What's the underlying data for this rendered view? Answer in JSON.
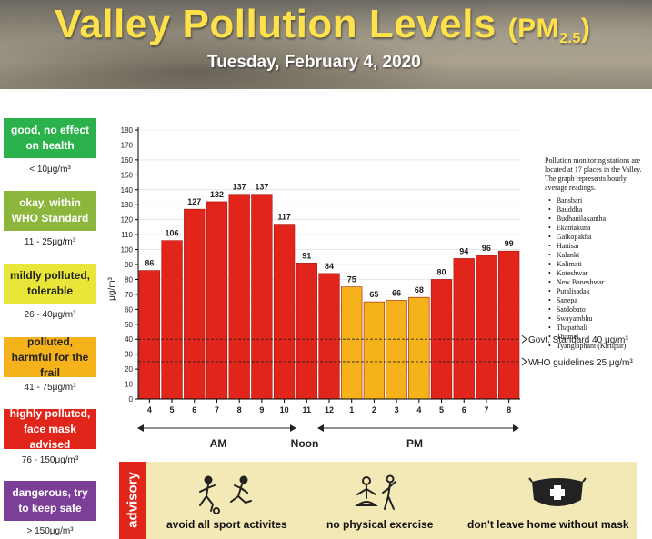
{
  "header": {
    "title": "Valley Pollution Levels",
    "title_pm": "(PM",
    "title_sub": "2.5",
    "title_close": ")",
    "date": "Tuesday, February 4, 2020"
  },
  "legend": [
    {
      "label": "good, no effect on health",
      "range": "< 10μg/m³",
      "color": "#2bb24c"
    },
    {
      "label": "okay, within WHO Standard",
      "range": "11 - 25μg/m³",
      "color": "#8cb63c"
    },
    {
      "label": "mildly polluted, tolerable",
      "range": "26 - 40μg/m³",
      "color": "#e9e63a",
      "text_color": "#222222"
    },
    {
      "label": "polluted, harmful for the frail",
      "range": "41 - 75μg/m³",
      "color": "#f5b21a",
      "text_color": "#222222"
    },
    {
      "label": "highly polluted, face mask advised",
      "range": "76 - 150μg/m³",
      "color": "#e1251b"
    },
    {
      "label": "dangerous, try to keep safe",
      "range": "> 150μg/m³",
      "color": "#7b3f98"
    }
  ],
  "chart_data": {
    "type": "bar",
    "categories": [
      "4",
      "5",
      "6",
      "7",
      "8",
      "9",
      "10",
      "11",
      "12",
      "1",
      "2",
      "3",
      "4",
      "5",
      "6",
      "7",
      "8"
    ],
    "values": [
      86,
      106,
      127,
      132,
      137,
      137,
      117,
      91,
      84,
      75,
      65,
      66,
      68,
      80,
      94,
      96,
      99
    ],
    "ylabel": "μg/m³",
    "ylim": [
      0,
      180
    ],
    "ytick_step": 10,
    "period_labels": {
      "am": "AM",
      "noon": "Noon",
      "pm": "PM"
    },
    "reference_lines": [
      {
        "label": "Govt. Standard  40 μg/m³",
        "value": 40
      },
      {
        "label": "WHO guidelines  25 μg/m³",
        "value": 25
      }
    ],
    "colors": {
      "high": "#e1251b",
      "moderate": "#f5b21a",
      "bar_border": "#a11510"
    }
  },
  "stations": {
    "intro": "Pollution monitoring stations are located at 17 places in the Valley. The graph represents hourly average readings.",
    "items": [
      "Bansbari",
      "Bauddha",
      "Budhanilakantha",
      "Ekantakuna",
      "Galkopakha",
      "Hattisar",
      "Kalanki",
      "Kalimati",
      "Koteshwar",
      "New Baneshwar",
      "Putalisadak",
      "Sanepa",
      "Satdobato",
      "Swayambhu",
      "Thapathali",
      "Thamel",
      "Tyanglaphant (Kirtipur)"
    ]
  },
  "advisory": {
    "tab": "advisory",
    "items": [
      {
        "label": "avoid all sport activites",
        "icon": "sport-icon"
      },
      {
        "label": "no physical exercise",
        "icon": "exercise-icon"
      },
      {
        "label": "don't leave home without mask",
        "icon": "mask-icon"
      }
    ]
  }
}
